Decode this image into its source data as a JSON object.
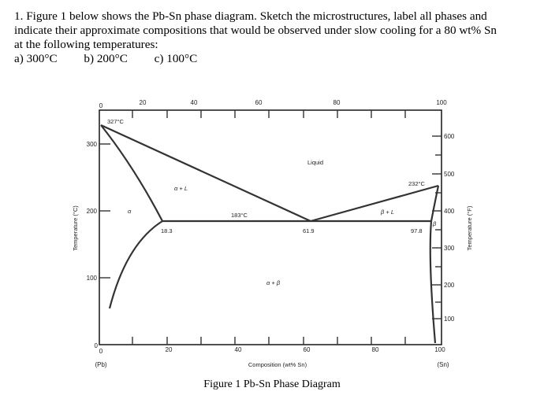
{
  "question": {
    "line1": "1. Figure 1 below shows the Pb-Sn phase diagram. Sketch the microstructures, label all phases and",
    "line2": "indicate their approximate compositions that would be observed under slow cooling for a 80 wt% Sn",
    "line3": "at the following temperatures:",
    "part_a": "a) 300°C",
    "part_b": "b) 200°C",
    "part_c": "c) 100°C"
  },
  "figure": {
    "caption": "Figure 1 Pb-Sn Phase Diagram",
    "x_top_ticks": [
      "0",
      "20",
      "40",
      "60",
      "80",
      "100"
    ],
    "x_bottom_ticks": [
      "0",
      "20",
      "40",
      "60",
      "80",
      "100"
    ],
    "x_label": "Composition (wt% Sn)",
    "x_left_end": "(Pb)",
    "x_right_end": "(Sn)",
    "y_left_ticks": [
      "0",
      "100",
      "200",
      "300"
    ],
    "y_left_label": "Temperature (°C)",
    "y_right_ticks": [
      "100",
      "200",
      "300",
      "400",
      "500",
      "600"
    ],
    "y_right_label": "Temperature (°F)",
    "labels": {
      "pb_melt": "327°C",
      "sn_melt": "232°C",
      "eutectic_temp": "183°C",
      "alpha_max": "18.3",
      "eutectic_comp": "61.9",
      "beta_max": "97.8",
      "liquid": "Liquid",
      "alpha_l": "α + L",
      "beta_l": "β + L",
      "alpha_beta": "α + β",
      "alpha": "α",
      "beta": "β"
    }
  },
  "chart_data": {
    "type": "phase-diagram",
    "xlabel": "Composition (wt% Sn)",
    "ylabel": "Temperature (°C)",
    "y2label": "Temperature (°F)",
    "xlim": [
      0,
      100
    ],
    "ylim": [
      0,
      350
    ],
    "key_points": {
      "pb_melting_point": [
        0,
        327
      ],
      "sn_melting_point": [
        100,
        232
      ],
      "eutectic_point": [
        61.9,
        183
      ],
      "alpha_max_solubility": [
        18.3,
        183
      ],
      "beta_max_solubility": [
        97.8,
        183
      ]
    },
    "regions": [
      "Liquid",
      "α + L",
      "β + L",
      "α + β",
      "α",
      "β"
    ]
  }
}
